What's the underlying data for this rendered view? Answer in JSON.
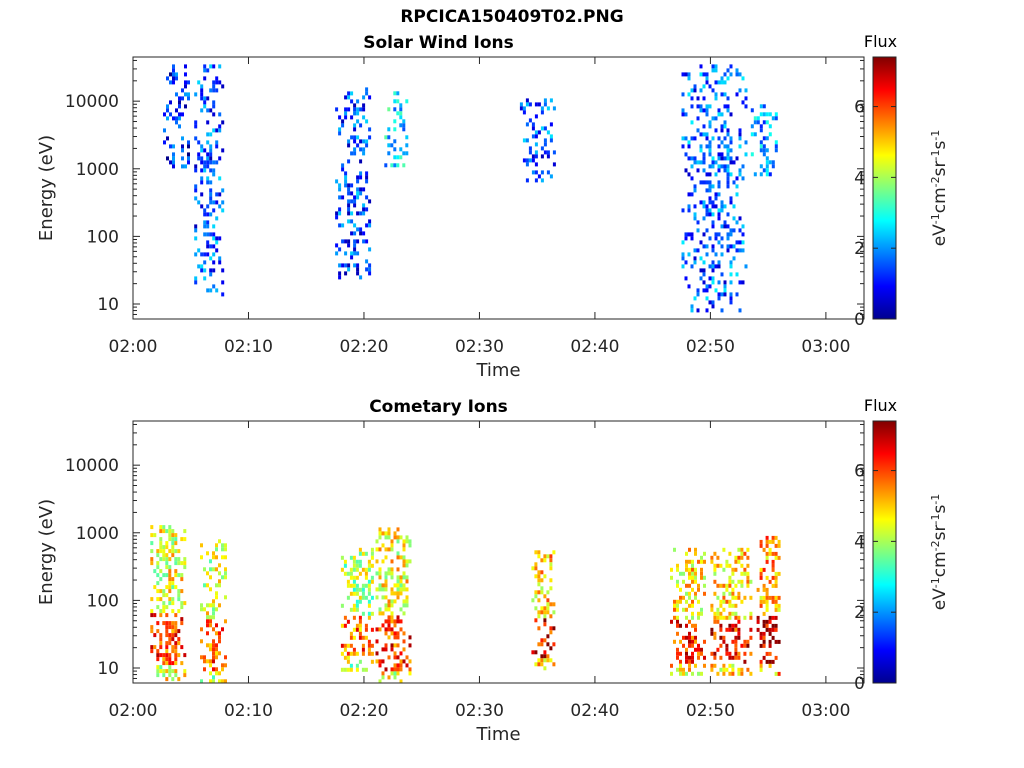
{
  "figure_title": "RPCICA150409T02.PNG",
  "colors": {
    "axis": "#262626",
    "background": "#ffffff"
  },
  "chart_data": [
    {
      "type": "heatmap",
      "title": "Solar Wind Ions",
      "xlabel": "Time",
      "ylabel": "Energy (eV)",
      "xticks": [
        "02:00",
        "02:10",
        "02:20",
        "02:30",
        "02:40",
        "02:50",
        "03:00"
      ],
      "xlim_minutes": [
        0,
        63.3
      ],
      "yscale": "log",
      "ylim": [
        6,
        45000
      ],
      "yticks": [
        10,
        100,
        1000,
        10000
      ],
      "ytick_labels": [
        "10",
        "100",
        "1000",
        "10000"
      ],
      "colorbar": {
        "title": "Flux",
        "label": "eV-1cm-2sr-1s-1",
        "range": [
          0,
          7.4
        ],
        "ticks": [
          "0",
          "2",
          "4",
          "6"
        ],
        "colormap": "jet"
      },
      "bursts": [
        {
          "t_start": 2.6,
          "t_end": 4.8,
          "e_min": 1100,
          "e_max": 35000,
          "flux": 1.1
        },
        {
          "t_start": 5.3,
          "t_end": 7.8,
          "e_min": 14,
          "e_max": 35000,
          "flux": 1.5
        },
        {
          "t_start": 17.5,
          "t_end": 20.5,
          "e_min": 25,
          "e_max": 16000,
          "flux": 1.4
        },
        {
          "t_start": 21.5,
          "t_end": 23.8,
          "e_min": 1000,
          "e_max": 14000,
          "flux": 2.5
        },
        {
          "t_start": 33.5,
          "t_end": 36.5,
          "e_min": 700,
          "e_max": 11000,
          "flux": 1.5
        },
        {
          "t_start": 47.5,
          "t_end": 53.0,
          "e_min": 8,
          "e_max": 35000,
          "flux": 1.6
        },
        {
          "t_start": 53.5,
          "t_end": 55.8,
          "e_min": 700,
          "e_max": 9000,
          "flux": 2.2
        }
      ]
    },
    {
      "type": "heatmap",
      "title": "Cometary Ions",
      "xlabel": "Time",
      "ylabel": "Energy (eV)",
      "xticks": [
        "02:00",
        "02:10",
        "02:20",
        "02:30",
        "02:40",
        "02:50",
        "03:00"
      ],
      "xlim_minutes": [
        0,
        63.3
      ],
      "yscale": "log",
      "ylim": [
        6,
        45000
      ],
      "yticks": [
        10,
        100,
        1000,
        10000
      ],
      "ytick_labels": [
        "10",
        "100",
        "1000",
        "10000"
      ],
      "colorbar": {
        "title": "Flux",
        "label": "eV-1cm-2sr-1s-1",
        "range": [
          0,
          7.4
        ],
        "ticks": [
          "0",
          "2",
          "4",
          "6"
        ],
        "colormap": "jet"
      },
      "bursts": [
        {
          "t_start": 1.5,
          "t_end": 4.5,
          "e_min": 7,
          "e_max": 1300,
          "flux": 4.8
        },
        {
          "t_start": 5.8,
          "t_end": 8.0,
          "e_min": 6,
          "e_max": 800,
          "flux": 4.6
        },
        {
          "t_start": 18.0,
          "t_end": 20.8,
          "e_min": 10,
          "e_max": 600,
          "flux": 4.4
        },
        {
          "t_start": 21.0,
          "t_end": 24.0,
          "e_min": 6,
          "e_max": 1200,
          "flux": 4.9
        },
        {
          "t_start": 34.5,
          "t_end": 36.5,
          "e_min": 10,
          "e_max": 550,
          "flux": 5.3
        },
        {
          "t_start": 46.5,
          "t_end": 49.5,
          "e_min": 8,
          "e_max": 600,
          "flux": 5.1
        },
        {
          "t_start": 50.0,
          "t_end": 53.5,
          "e_min": 8,
          "e_max": 600,
          "flux": 5.2
        },
        {
          "t_start": 54.0,
          "t_end": 56.0,
          "e_min": 8,
          "e_max": 900,
          "flux": 5.6
        }
      ]
    }
  ]
}
